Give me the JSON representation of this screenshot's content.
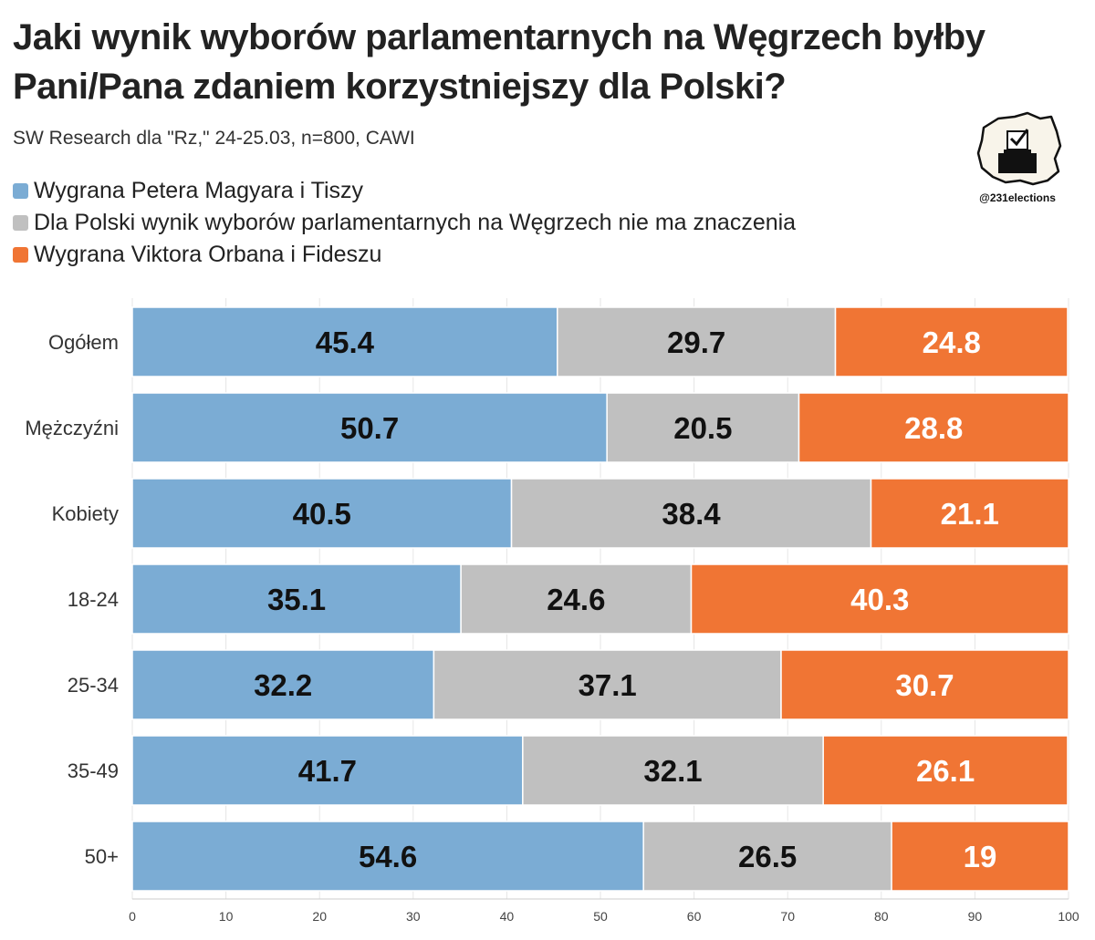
{
  "title": "Jaki wynik wyborów parlamentarnych na Węgrzech byłby Pani/Pana zdaniem korzystniejszy dla Polski?",
  "subtitle": "SW Research dla \"Rz,\" 24-25.03, n=800, CAWI",
  "logo": {
    "handle": "@231elections",
    "icon": "poland-map-ballot-box-icon"
  },
  "colors": {
    "magyar": "#7bacd4",
    "neutral": "#c0c0c0",
    "orban": "#f07534"
  },
  "chart_data": {
    "type": "bar",
    "orientation": "horizontal",
    "stacked": true,
    "categories": [
      "Ogółem",
      "Mężczyźni",
      "Kobiety",
      "18-24",
      "25-34",
      "35-49",
      "50+"
    ],
    "series": [
      {
        "name": "Wygrana Petera Magyara i Tiszy",
        "color": "#7bacd4",
        "label_color": "#111111",
        "values": [
          45.4,
          50.7,
          40.5,
          35.1,
          32.2,
          41.7,
          54.6
        ]
      },
      {
        "name": "Dla Polski wynik wyborów parlamentarnych na Węgrzech nie ma znaczenia",
        "color": "#c0c0c0",
        "label_color": "#111111",
        "values": [
          29.7,
          20.5,
          38.4,
          24.6,
          37.1,
          32.1,
          26.5
        ]
      },
      {
        "name": "Wygrana Viktora Orbana i Fideszu",
        "color": "#f07534",
        "label_color": "#ffffff",
        "values": [
          24.8,
          28.8,
          21.1,
          40.3,
          30.7,
          26.1,
          19
        ]
      }
    ],
    "xlim": [
      0,
      100
    ],
    "xticks": [
      0,
      10,
      20,
      30,
      40,
      50,
      60,
      70,
      80,
      90,
      100
    ],
    "grid": true,
    "legend_position": "top-left"
  }
}
